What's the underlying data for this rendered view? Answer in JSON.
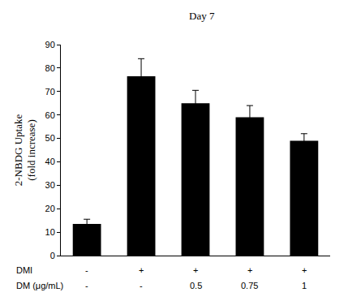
{
  "chart_data": {
    "type": "bar",
    "title": "Day 7",
    "y_label": "2-NBDG Uptake\n(fold increase)",
    "x_label_rows": [
      {
        "label": "DMI",
        "values": [
          "-",
          "+",
          "+",
          "+",
          "+"
        ]
      },
      {
        "label": "DM (μg/mL)",
        "values": [
          "-",
          "-",
          "0.5",
          "0.75",
          "1"
        ]
      }
    ],
    "values": [
      13.5,
      76.5,
      65,
      59,
      49
    ],
    "errors": [
      2,
      7.5,
      5.5,
      5,
      3
    ],
    "color": "#000000",
    "ylim": [
      0,
      90
    ],
    "yticks": [
      0,
      10,
      20,
      30,
      40,
      50,
      60,
      70,
      80,
      90
    ],
    "grid": false
  }
}
